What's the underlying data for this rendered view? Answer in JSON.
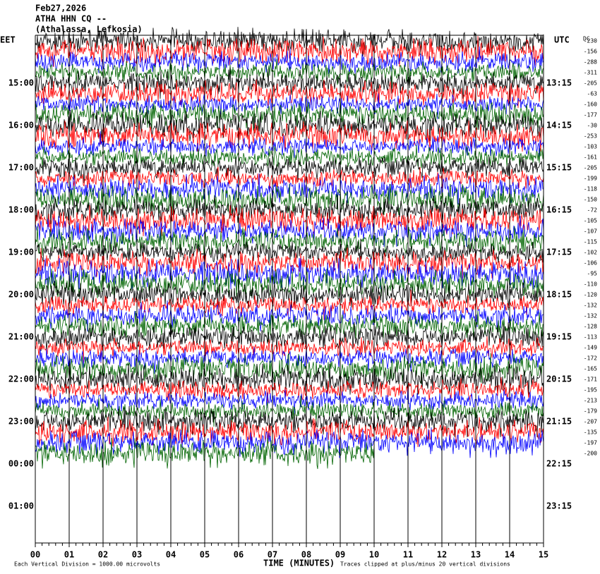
{
  "header": {
    "date": "Feb27,2026",
    "station": "ATHA HHN CQ --",
    "location": "(Athalassa, Lefkosia)"
  },
  "left_axis": {
    "title": "EET",
    "labels": [
      "15:00",
      "16:00",
      "17:00",
      "18:00",
      "19:00",
      "20:00",
      "21:00",
      "22:00",
      "23:00",
      "00:00",
      "01:00"
    ]
  },
  "right_axis": {
    "title": "UTC",
    "labels": [
      "13:15",
      "14:15",
      "15:15",
      "16:15",
      "17:15",
      "18:15",
      "19:15",
      "20:15",
      "21:15",
      "22:15",
      "23:15"
    ]
  },
  "dc": {
    "title": "DC",
    "offsets": [
      -230,
      -156,
      -288,
      -311,
      -205,
      -63,
      -160,
      -177,
      -30,
      -253,
      -103,
      -161,
      -205,
      -199,
      -118,
      -150,
      -72,
      -105,
      -107,
      -115,
      -102,
      -106,
      -95,
      -110,
      -120,
      -132,
      -132,
      -128,
      -113,
      -149,
      -172,
      -165,
      -171,
      -195,
      -213,
      -179,
      -207,
      -135,
      -197,
      -200
    ]
  },
  "x_axis": {
    "title": "TIME (MINUTES)",
    "labels": [
      "00",
      "01",
      "02",
      "03",
      "04",
      "05",
      "06",
      "07",
      "08",
      "09",
      "10",
      "11",
      "12",
      "13",
      "14",
      "15"
    ]
  },
  "footer": {
    "scale_note": "Each Vertical Division = 1000.00 microvolts",
    "clip_note": "Traces clipped at plus/minus 20 vertical divisions"
  }
}
